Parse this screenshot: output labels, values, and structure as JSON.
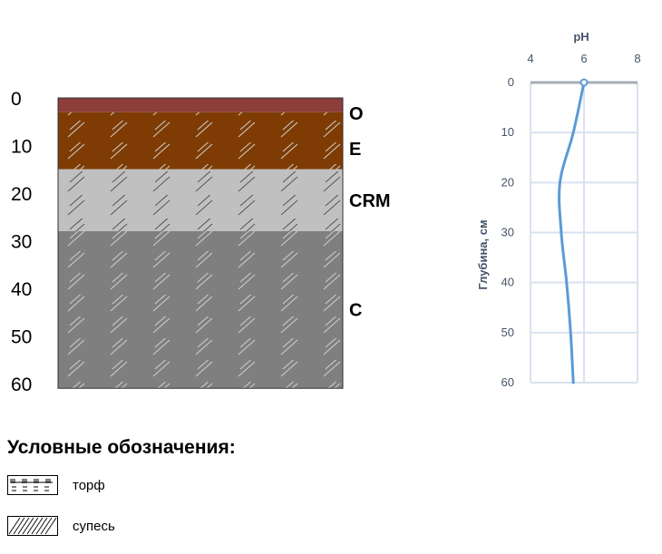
{
  "profile": {
    "depth_ticks": [
      "0",
      "10",
      "20",
      "30",
      "40",
      "50",
      "60"
    ],
    "depth_max": 60,
    "horizons": [
      {
        "name": "O",
        "top": 0,
        "bottom": 3,
        "color": "#8B3E3A",
        "texture": "none"
      },
      {
        "name": "E",
        "top": 3,
        "bottom": 15,
        "color": "#7E3C04",
        "texture": "sandy-loam"
      },
      {
        "name": "CRM",
        "top": 15,
        "bottom": 28,
        "color": "#C0C0C0",
        "texture": "sandy-loam"
      },
      {
        "name": "C",
        "top": 28,
        "bottom": 61,
        "color": "#7F7F7F",
        "texture": "sandy-loam"
      }
    ]
  },
  "chart_data": {
    "type": "line",
    "title": "pH",
    "xlabel": "pH",
    "ylabel": "Глубина, см",
    "xlim": [
      4,
      8
    ],
    "ylim": [
      0,
      60
    ],
    "y_inverted": true,
    "x_ticks": [
      "4",
      "6",
      "8"
    ],
    "y_ticks": [
      "0",
      "10",
      "20",
      "30",
      "40",
      "50",
      "60"
    ],
    "grid": true,
    "series": [
      {
        "color": "#5B9BD5",
        "x": [
          6.0,
          5.6,
          5.1,
          5.15,
          5.35,
          5.5,
          5.6
        ],
        "y": [
          0,
          10,
          20,
          30,
          40,
          50,
          60
        ]
      }
    ]
  },
  "legend": {
    "title": "Условные обозначения:",
    "items": [
      {
        "icon": "peat-pattern-icon",
        "label": "торф"
      },
      {
        "icon": "sandy-loam-pattern-icon",
        "label": "супесь"
      }
    ]
  }
}
